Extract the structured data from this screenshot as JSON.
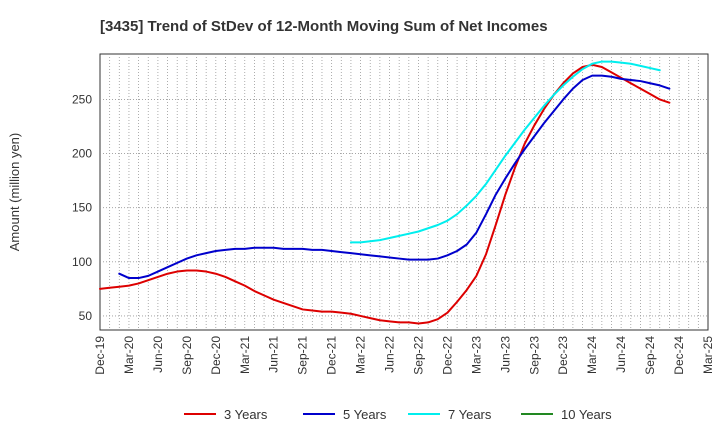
{
  "chart_data": {
    "type": "line",
    "title": "[3435]  Trend of StDev of 12-Month Moving Sum of Net Incomes",
    "ylabel": "Amount (million yen)",
    "xlabel": "",
    "ylim": [
      37,
      292
    ],
    "yticks": [
      50,
      100,
      150,
      200,
      250
    ],
    "x_tick_labels": [
      "Dec-19",
      "Mar-20",
      "Jun-20",
      "Sep-20",
      "Dec-20",
      "Mar-21",
      "Jun-21",
      "Sep-21",
      "Dec-21",
      "Mar-22",
      "Jun-22",
      "Sep-22",
      "Dec-22",
      "Mar-23",
      "Jun-23",
      "Sep-23",
      "Dec-23",
      "Mar-24",
      "Jun-24",
      "Sep-24",
      "Dec-24",
      "Mar-25"
    ],
    "grid": true,
    "legend_position": "bottom",
    "series": [
      {
        "name": "3 Years",
        "color": "#dd0000",
        "start_index": 0,
        "values": [
          75,
          76,
          77,
          78,
          80,
          83,
          86,
          89,
          91,
          92,
          92,
          91,
          89,
          86,
          82,
          78,
          73,
          69,
          65,
          62,
          59,
          56,
          55,
          54,
          54,
          53,
          52,
          50,
          48,
          46,
          45,
          44,
          44,
          43,
          44,
          47,
          53,
          63,
          74,
          87,
          107,
          134,
          162,
          187,
          209,
          226,
          241,
          254,
          265,
          274,
          280,
          282,
          280,
          275,
          270,
          265,
          260,
          255,
          250,
          247
        ]
      },
      {
        "name": "5 Years",
        "color": "#0000cc",
        "start_index": 2,
        "values": [
          89,
          85,
          85,
          87,
          91,
          95,
          99,
          103,
          106,
          108,
          110,
          111,
          112,
          112,
          113,
          113,
          113,
          112,
          112,
          112,
          111,
          111,
          110,
          109,
          108,
          107,
          106,
          105,
          104,
          103,
          102,
          102,
          102,
          103,
          106,
          110,
          116,
          127,
          144,
          162,
          177,
          191,
          204,
          216,
          228,
          239,
          250,
          260,
          268,
          272,
          272,
          271,
          269,
          268,
          267,
          265,
          263,
          260
        ]
      },
      {
        "name": "7 Years",
        "color": "#00eeee",
        "start_index": 26,
        "values": [
          118,
          118,
          119,
          120,
          122,
          124,
          126,
          128,
          131,
          134,
          138,
          144,
          152,
          161,
          172,
          185,
          198,
          210,
          222,
          233,
          244,
          254,
          263,
          271,
          278,
          283,
          285,
          285,
          284,
          283,
          281,
          279,
          277
        ]
      },
      {
        "name": "10 Years",
        "color": "#228822",
        "start_index": 0,
        "values": []
      }
    ]
  }
}
